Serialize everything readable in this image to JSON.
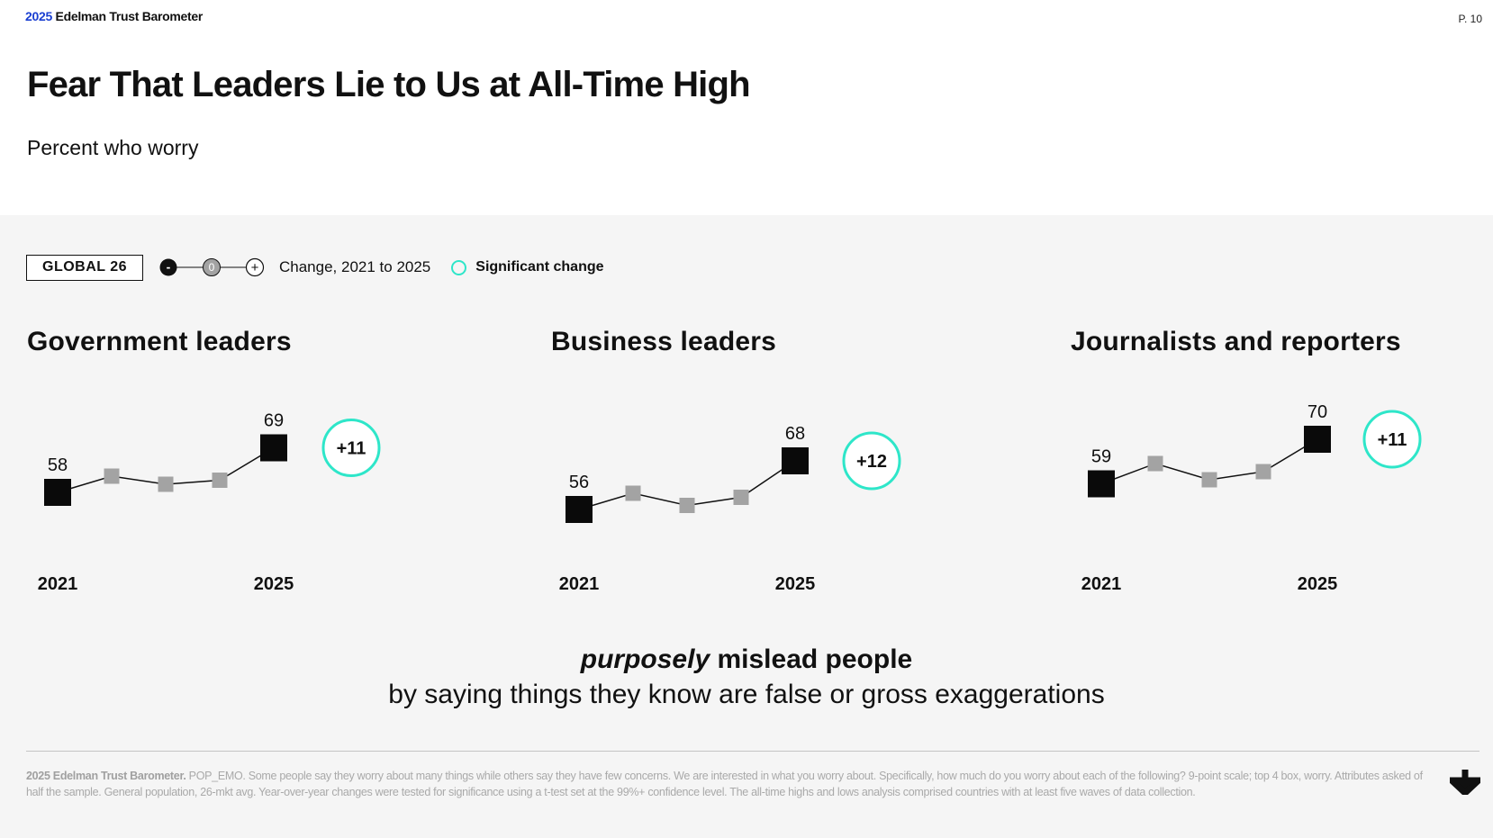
{
  "header": {
    "brand_year": "2025",
    "brand_name": "Edelman Trust Barometer",
    "page_number": "P. 10",
    "title": "Fear That Leaders Lie to Us at All-Time High",
    "subtitle": "Percent who worry"
  },
  "legend": {
    "global_label": "GLOBAL 26",
    "scale_minus": "-",
    "scale_zero": "0",
    "scale_plus": "+",
    "change_label": "Change, 2021 to 2025",
    "significant_label": "Significant change",
    "significant_color": "#2ee6c9"
  },
  "chart_data": [
    {
      "type": "line",
      "title": "Government leaders",
      "x": [
        "2021",
        "2022",
        "2023",
        "2024",
        "2025"
      ],
      "x_labels": [
        "2021",
        "2025"
      ],
      "values": [
        58,
        62,
        60,
        61,
        69
      ],
      "labeled_values": [
        "58",
        "69"
      ],
      "change": "+11",
      "significant": true
    },
    {
      "type": "line",
      "title": "Business leaders",
      "x": [
        "2021",
        "2022",
        "2023",
        "2024",
        "2025"
      ],
      "x_labels": [
        "2021",
        "2025"
      ],
      "values": [
        56,
        60,
        57,
        59,
        68
      ],
      "labeled_values": [
        "56",
        "68"
      ],
      "change": "+12",
      "significant": true
    },
    {
      "type": "line",
      "title": "Journalists and reporters",
      "x": [
        "2021",
        "2022",
        "2023",
        "2024",
        "2025"
      ],
      "x_labels": [
        "2021",
        "2025"
      ],
      "values": [
        59,
        64,
        60,
        62,
        70
      ],
      "labeled_values": [
        "59",
        "70"
      ],
      "change": "+11",
      "significant": true
    }
  ],
  "caption": {
    "emphasis": "purposely",
    "line1_rest": " mislead people",
    "line2": "by saying things they know are false or gross exaggerations"
  },
  "footnote": {
    "source": "2025 Edelman Trust Barometer.",
    "text": " POP_EMO. Some people say they worry about many things while others say they have few concerns. We are interested in what you worry about. Specifically, how much do you worry about each of the following? 9-point scale; top 4 box, worry. Attributes asked of half the sample. General population, 26-mkt avg. Year-over-year changes were tested for significance using a t-test set at the 99%+ confidence level. The all-time highs and lows analysis comprised countries with at least five waves of data collection."
  },
  "colors": {
    "endpoint": "#0a0a0a",
    "midpoint": "#a3a3a3",
    "line": "#111111",
    "brand_blue": "#1a3fd1"
  }
}
